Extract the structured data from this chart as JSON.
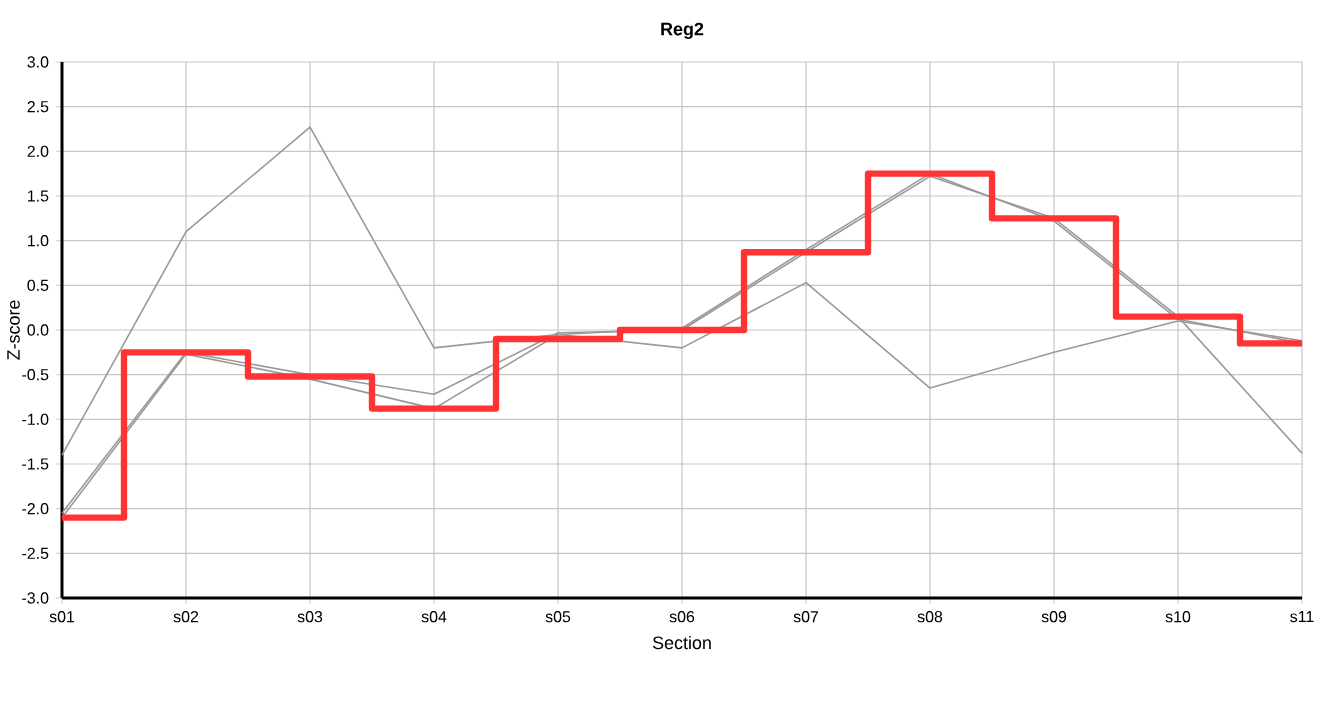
{
  "chart_data": {
    "type": "line",
    "title": "Reg2",
    "xlabel": "Section",
    "ylabel": "Z-score",
    "categories": [
      "s01",
      "s02",
      "s03",
      "s04",
      "s05",
      "s06",
      "s07",
      "s08",
      "s09",
      "s10",
      "s11"
    ],
    "series": [
      {
        "color": "#999999",
        "values": [
          -1.4,
          1.1,
          2.27,
          -0.2,
          -0.05,
          -0.2,
          0.53,
          -0.65,
          -0.25,
          0.1,
          -0.12
        ]
      },
      {
        "color": "#999999",
        "values": [
          -2.05,
          -0.25,
          -0.5,
          -0.72,
          -0.03,
          0.0,
          0.87,
          1.72,
          1.25,
          0.15,
          -1.38
        ]
      },
      {
        "color": "#999999",
        "values": [
          -2.1,
          -0.27,
          -0.55,
          -0.88,
          -0.05,
          0.02,
          0.9,
          1.75,
          1.22,
          0.12,
          -0.15
        ]
      },
      {
        "type": "step",
        "color": "#ff3333",
        "values": [
          -2.1,
          -0.25,
          -0.52,
          -0.88,
          -0.1,
          0.0,
          0.87,
          1.75,
          1.25,
          0.15,
          -0.15
        ]
      }
    ],
    "ylim": [
      -3,
      3
    ],
    "yticks": [
      {
        "value": -3,
        "label": "-3.0"
      },
      {
        "value": -2.5,
        "label": "-2.5"
      },
      {
        "value": -2,
        "label": "-2.0"
      },
      {
        "value": -1.5,
        "label": "-1.5"
      },
      {
        "value": -1,
        "label": "-1.0"
      },
      {
        "value": -0.5,
        "label": "-0.5"
      },
      {
        "value": 0,
        "label": "0.0"
      },
      {
        "value": 0.5,
        "label": "0.5"
      },
      {
        "value": 1,
        "label": "1.0"
      },
      {
        "value": 1.5,
        "label": "1.5"
      },
      {
        "value": 2,
        "label": "2.0"
      },
      {
        "value": 2.5,
        "label": "2.5"
      },
      {
        "value": 3,
        "label": "3.0"
      }
    ],
    "grid": true
  }
}
